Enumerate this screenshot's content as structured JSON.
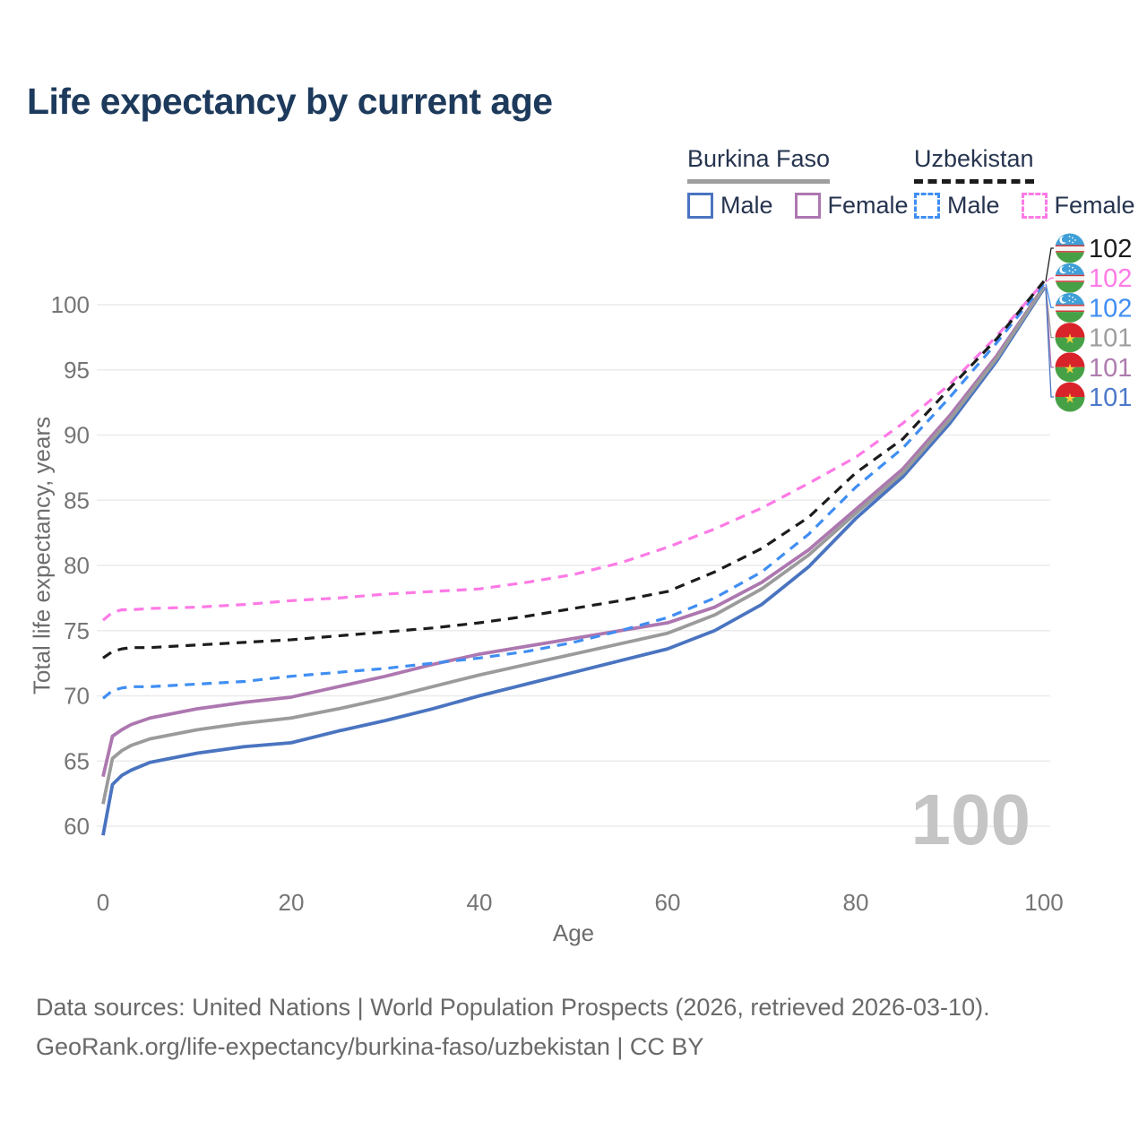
{
  "title": "Life expectancy by current age",
  "legend": {
    "groups": [
      {
        "name": "Burkina Faso",
        "line_style": "solid",
        "underline_color": "#9e9e9e",
        "items": [
          {
            "label": "Male",
            "color": "#4a74c0",
            "dashed": false
          },
          {
            "label": "Female",
            "color": "#ad77b0",
            "dashed": false
          }
        ]
      },
      {
        "name": "Uzbekistan",
        "line_style": "dashed",
        "underline_color": "#1c1c1c",
        "items": [
          {
            "label": "Male",
            "color": "#3f8ef3",
            "dashed": true
          },
          {
            "label": "Female",
            "color": "#fd7ae6",
            "dashed": true
          }
        ]
      }
    ]
  },
  "chart_data": {
    "type": "line",
    "title": "Life expectancy by current age",
    "xlabel": "Age",
    "ylabel": "Total life expectancy, years",
    "x_ticks": [
      0,
      20,
      40,
      60,
      80,
      100
    ],
    "y_ticks": [
      60,
      65,
      70,
      75,
      80,
      85,
      90,
      95,
      100
    ],
    "xlim": [
      0,
      100
    ],
    "ylim": [
      58,
      103
    ],
    "grid": true,
    "legend_position": "top-right",
    "watermark": "100",
    "x": [
      0,
      1,
      2,
      3,
      5,
      10,
      15,
      20,
      25,
      30,
      35,
      40,
      45,
      50,
      55,
      60,
      65,
      70,
      75,
      80,
      85,
      90,
      95,
      100
    ],
    "series": [
      {
        "key": "uzbekistan-total",
        "name": "Uzbekistan — Total",
        "country": "Uzbekistan",
        "sex": "Total",
        "color": "#1c1c1c",
        "dashed": true,
        "flag": "uzbekistan",
        "end_label": "102",
        "label_color": "#1c1c1c",
        "values": [
          72.9,
          73.4,
          73.6,
          73.7,
          73.7,
          73.9,
          74.1,
          74.3,
          74.6,
          74.9,
          75.2,
          75.6,
          76.1,
          76.7,
          77.3,
          78.0,
          79.5,
          81.3,
          83.7,
          87.1,
          89.7,
          93.6,
          97.4,
          101.8
        ]
      },
      {
        "key": "uzbekistan-female",
        "name": "Uzbekistan — Female",
        "country": "Uzbekistan",
        "sex": "Female",
        "color": "#fd7ae6",
        "dashed": true,
        "flag": "uzbekistan",
        "end_label": "102",
        "label_color": "#fd7ae6",
        "values": [
          75.8,
          76.4,
          76.6,
          76.6,
          76.7,
          76.8,
          77.0,
          77.3,
          77.5,
          77.8,
          78.0,
          78.2,
          78.7,
          79.3,
          80.2,
          81.4,
          82.8,
          84.4,
          86.3,
          88.3,
          90.9,
          93.9,
          97.6,
          101.75
        ]
      },
      {
        "key": "uzbekistan-male",
        "name": "Uzbekistan — Male",
        "country": "Uzbekistan",
        "sex": "Male",
        "color": "#3f8ef3",
        "dashed": true,
        "flag": "uzbekistan",
        "end_label": "102",
        "label_color": "#3f8ef3",
        "values": [
          69.8,
          70.4,
          70.6,
          70.7,
          70.7,
          70.9,
          71.1,
          71.5,
          71.8,
          72.1,
          72.5,
          72.9,
          73.4,
          74.1,
          75.0,
          76.0,
          77.5,
          79.5,
          82.4,
          86.0,
          89.0,
          92.9,
          97.1,
          101.6
        ]
      },
      {
        "key": "burkina-faso-total",
        "name": "Burkina Faso — Total",
        "country": "Burkina Faso",
        "sex": "Total",
        "color": "#9b9b9b",
        "dashed": false,
        "flag": "burkina-faso",
        "end_label": "101",
        "label_color": "#9e9e9e",
        "values": [
          61.7,
          65.2,
          65.8,
          66.2,
          66.7,
          67.4,
          67.9,
          68.3,
          69.0,
          69.8,
          70.7,
          71.6,
          72.4,
          73.2,
          74.0,
          74.8,
          76.2,
          78.2,
          80.8,
          84.0,
          87.1,
          91.2,
          95.9,
          101.35
        ]
      },
      {
        "key": "burkina-faso-female",
        "name": "Burkina Faso — Female",
        "country": "Burkina Faso",
        "sex": "Female",
        "color": "#ad77b0",
        "dashed": false,
        "flag": "burkina-faso",
        "end_label": "101",
        "label_color": "#ae7bae",
        "values": [
          63.8,
          66.9,
          67.4,
          67.8,
          68.3,
          69.0,
          69.5,
          69.9,
          70.7,
          71.5,
          72.4,
          73.2,
          73.8,
          74.4,
          75.0,
          75.6,
          76.8,
          78.7,
          81.2,
          84.3,
          87.4,
          91.5,
          96.1,
          101.4
        ]
      },
      {
        "key": "burkina-faso-male",
        "name": "Burkina Faso — Male",
        "country": "Burkina Faso",
        "sex": "Male",
        "color": "#4a74c0",
        "dashed": false,
        "flag": "burkina-faso",
        "end_label": "101",
        "label_color": "#4d79c9",
        "values": [
          59.3,
          63.2,
          63.9,
          64.3,
          64.9,
          65.6,
          66.1,
          66.4,
          67.3,
          68.1,
          69.0,
          70.0,
          70.9,
          71.8,
          72.7,
          73.6,
          75.0,
          77.0,
          79.9,
          83.6,
          86.8,
          90.9,
          95.7,
          101.25
        ]
      }
    ]
  },
  "footer": {
    "line1": "Data sources: United Nations | World Population Prospects (2026, retrieved 2026-03-10).",
    "line2": "GeoRank.org/life-expectancy/burkina-faso/uzbekistan | CC BY"
  }
}
